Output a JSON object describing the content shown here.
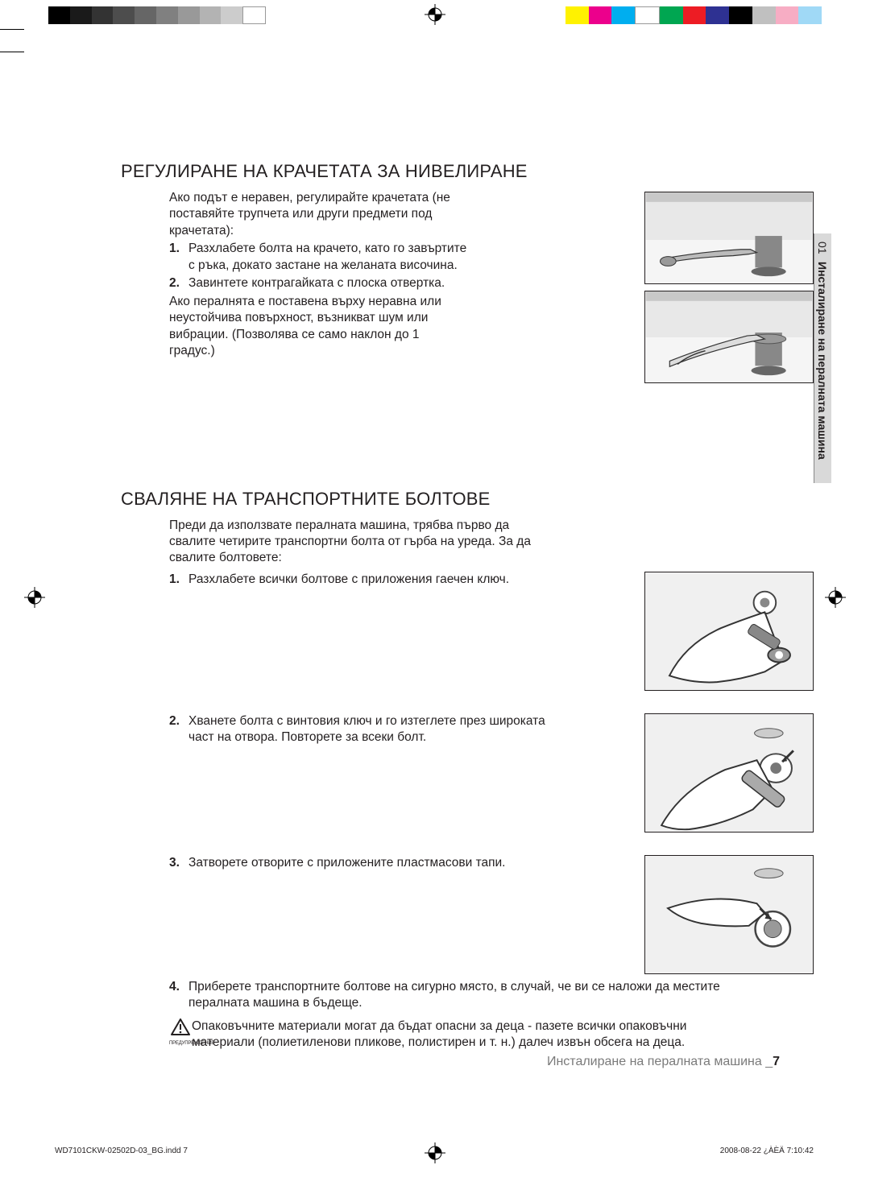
{
  "colorbar": {
    "grayscale": [
      "#000000",
      "#1a1a1a",
      "#333333",
      "#4d4d4d",
      "#666666",
      "#808080",
      "#999999",
      "#b3b3b3",
      "#cccccc",
      "#ffffff"
    ],
    "colors": [
      "#fff200",
      "#ec008c",
      "#00aeef",
      "#ffffff",
      "#00a651",
      "#ed1c24",
      "#2e3192",
      "#000000",
      "#c0c0c0",
      "#f7adc4",
      "#a0d9f6"
    ]
  },
  "section1": {
    "title": "РЕГУЛИРАНЕ НА КРАЧЕТАТА ЗА НИВЕЛИРАНЕ",
    "intro": "Ако подът е неравен, регулирайте крачетата (не поставяйте трупчета или други предмети под крачетата):",
    "step1": "Разхлабете болта на крачето, като го завъртите с ръка, докато застане на желаната височина.",
    "step2": "Завинтете контрагайката с плоска отвертка.",
    "after": "Ако пералнята е поставена върху неравна или неустойчива повърхност, възникват шум или вибрации. (Позволява се само наклон до 1 градус.)"
  },
  "section2": {
    "title": "СВАЛЯНЕ НА ТРАНСПОРТНИТЕ БОЛТОВЕ",
    "intro": "Преди да използвате пералната машина, трябва първо да свалите четирите транспортни болта от гърба на уреда. За да свалите болтовете:",
    "step1": "Разхлабете всички болтове с приложения гаечен ключ.",
    "step2": "Хванете болта с винтовия ключ и го изтеглете през широката част на отвора. Повторете за всеки болт.",
    "step3": "Затворете отворите с приложените пластмасови тапи.",
    "step4": "Приберете транспортните болтове на сигурно място, в случай, че ви се наложи да местите пералната машина в бъдеще.",
    "warning_label": "ПРЕДУПРЕЖДЕНИЕ",
    "warning": "Опаковъчните материали могат да бъдат опасни за деца - пазете всички опаковъчни материали (полиетиленови пликове, полистирен и т. н.) далеч извън обсега на деца."
  },
  "sidetab": {
    "chapter": "01",
    "title": "Инсталиране на пералната машина"
  },
  "footer": {
    "text": "Инсталиране на пералната машина _",
    "page": "7"
  },
  "print": {
    "file": "WD7101CKW-02502D-03_BG.indd   7",
    "stamp": "2008-08-22   ¿ÀÈÄ 7:10:42"
  }
}
